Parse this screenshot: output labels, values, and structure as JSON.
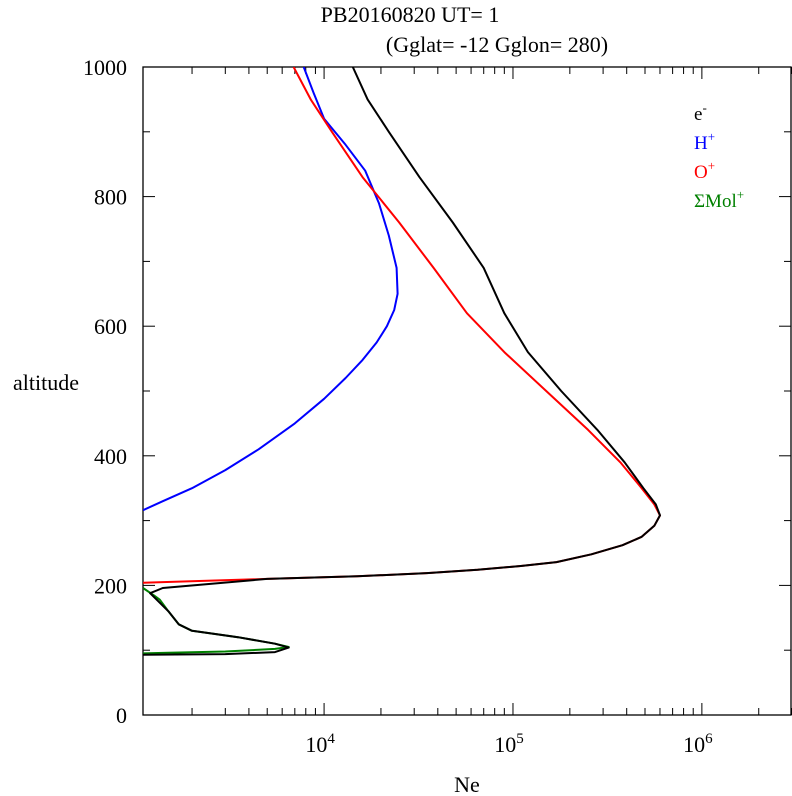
{
  "chart_data": {
    "type": "line",
    "title": "PB20160820   UT=  1",
    "subtitle": "(Gglat= -12   Gglon=  280)",
    "xlabel": "Ne",
    "ylabel": "altitude",
    "x_scale": "log",
    "xlim": [
      1100,
      3000000
    ],
    "ylim": [
      0,
      1000
    ],
    "y_ticks": [
      "0",
      "200",
      "400",
      "600",
      "800",
      "1000"
    ],
    "x_ticks": [
      {
        "value": 10000,
        "base": "10",
        "exp": "4"
      },
      {
        "value": 100000,
        "base": "10",
        "exp": "5"
      },
      {
        "value": 1000000,
        "base": "10",
        "exp": "6"
      }
    ],
    "legend_position": "top-right",
    "series": [
      {
        "name": "H",
        "sup": "+",
        "color": "#0000ff",
        "points": [
          [
            1100,
            316
          ],
          [
            1400,
            330
          ],
          [
            2000,
            350
          ],
          [
            3000,
            378
          ],
          [
            4500,
            410
          ],
          [
            7000,
            450
          ],
          [
            10000,
            488
          ],
          [
            13000,
            520
          ],
          [
            16000,
            548
          ],
          [
            19000,
            575
          ],
          [
            21500,
            600
          ],
          [
            23500,
            625
          ],
          [
            24500,
            650
          ],
          [
            24200,
            690
          ],
          [
            22000,
            740
          ],
          [
            19500,
            790
          ],
          [
            16500,
            840
          ],
          [
            13000,
            880
          ],
          [
            10000,
            920
          ],
          [
            8800,
            960
          ],
          [
            7800,
            1000
          ]
        ]
      },
      {
        "name": "O",
        "sup": "+",
        "color": "#ff0000",
        "points": [
          [
            1100,
            204
          ],
          [
            5000,
            210
          ],
          [
            15000,
            214
          ],
          [
            35000,
            219
          ],
          [
            65000,
            224
          ],
          [
            110000,
            230
          ],
          [
            170000,
            236
          ],
          [
            260000,
            248
          ],
          [
            380000,
            262
          ],
          [
            480000,
            275
          ],
          [
            560000,
            292
          ],
          [
            600000,
            308
          ],
          [
            560000,
            325
          ],
          [
            480000,
            350
          ],
          [
            370000,
            390
          ],
          [
            250000,
            440
          ],
          [
            150000,
            500
          ],
          [
            90000,
            560
          ],
          [
            57000,
            620
          ],
          [
            38000,
            690
          ],
          [
            25000,
            760
          ],
          [
            16000,
            830
          ],
          [
            11000,
            900
          ],
          [
            8500,
            950
          ],
          [
            6900,
            1000
          ]
        ]
      },
      {
        "name": "ΣMol",
        "sup": "+",
        "color": "#008000",
        "points": [
          [
            1100,
            196
          ],
          [
            1250,
            185
          ],
          [
            1350,
            178
          ],
          [
            1500,
            160
          ],
          [
            1700,
            140
          ],
          [
            2000,
            130
          ],
          [
            3500,
            120
          ],
          [
            5500,
            110
          ],
          [
            6500,
            105
          ],
          [
            5500,
            102
          ],
          [
            3000,
            98
          ],
          [
            1500,
            96
          ],
          [
            1100,
            95
          ]
        ]
      },
      {
        "name": "e",
        "sup": "-",
        "color": "#000000",
        "points": [
          [
            1100,
            93
          ],
          [
            3000,
            94
          ],
          [
            5500,
            97
          ],
          [
            6500,
            104
          ],
          [
            5500,
            110
          ],
          [
            3500,
            120
          ],
          [
            2000,
            130
          ],
          [
            1700,
            140
          ],
          [
            1500,
            160
          ],
          [
            1300,
            178
          ],
          [
            1200,
            188
          ],
          [
            1400,
            196
          ],
          [
            5000,
            210
          ],
          [
            15000,
            214
          ],
          [
            35000,
            219
          ],
          [
            65000,
            224
          ],
          [
            110000,
            230
          ],
          [
            170000,
            236
          ],
          [
            260000,
            248
          ],
          [
            380000,
            262
          ],
          [
            480000,
            275
          ],
          [
            560000,
            292
          ],
          [
            600000,
            308
          ],
          [
            570000,
            325
          ],
          [
            490000,
            350
          ],
          [
            390000,
            390
          ],
          [
            280000,
            440
          ],
          [
            180000,
            500
          ],
          [
            120000,
            560
          ],
          [
            90000,
            620
          ],
          [
            70000,
            690
          ],
          [
            48000,
            760
          ],
          [
            32000,
            830
          ],
          [
            22000,
            900
          ],
          [
            17000,
            950
          ],
          [
            14200,
            1000
          ]
        ]
      }
    ]
  }
}
